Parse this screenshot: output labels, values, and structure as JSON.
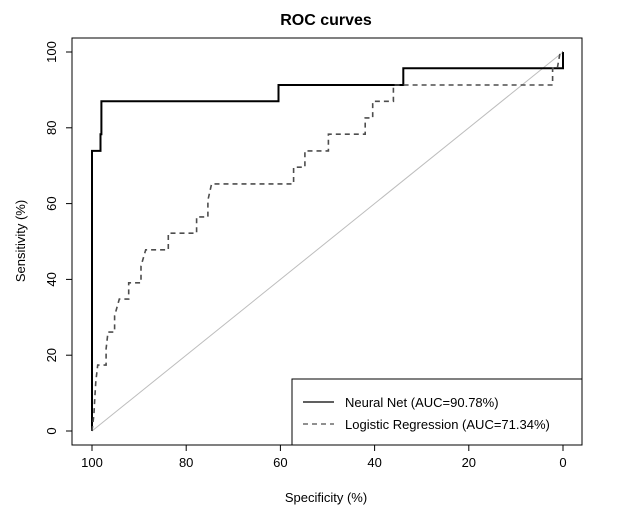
{
  "chart_data": {
    "type": "line",
    "title": "ROC curves",
    "xlabel": "Specificity (%)",
    "ylabel": "Sensitivity (%)",
    "xlim": [
      100,
      0
    ],
    "ylim": [
      0,
      100
    ],
    "x_ticks": [
      100,
      80,
      60,
      40,
      20,
      0
    ],
    "y_ticks": [
      0,
      20,
      40,
      60,
      80,
      100
    ],
    "grid": false,
    "legend_position": "bottom-right",
    "reference_line": {
      "x": [
        100,
        0
      ],
      "y": [
        0,
        100
      ],
      "color": "#bdbdbd"
    },
    "series": [
      {
        "name": "Neural Net (AUC=90.78%)",
        "line_style": "solid",
        "color": "#000000",
        "points": [
          [
            100,
            0
          ],
          [
            100,
            73.9
          ],
          [
            98.2,
            73.9
          ],
          [
            98.2,
            78.3
          ],
          [
            98,
            78.3
          ],
          [
            98,
            87
          ],
          [
            60.4,
            87
          ],
          [
            60.4,
            91.3
          ],
          [
            33.9,
            91.3
          ],
          [
            33.9,
            95.7
          ],
          [
            0,
            95.7
          ],
          [
            0,
            100
          ]
        ]
      },
      {
        "name": "Logistic Regression (AUC=71.34%)",
        "line_style": "dashed",
        "color": "#4d4d4d",
        "points": [
          [
            100,
            0
          ],
          [
            99.6,
            4.3
          ],
          [
            99.4,
            8.7
          ],
          [
            99.2,
            13
          ],
          [
            98.8,
            17.4
          ],
          [
            97,
            17.4
          ],
          [
            97,
            21.7
          ],
          [
            96.6,
            26.1
          ],
          [
            95.2,
            26.1
          ],
          [
            95.2,
            30.4
          ],
          [
            94.2,
            34.8
          ],
          [
            92.2,
            34.8
          ],
          [
            92.2,
            39.1
          ],
          [
            89.6,
            39.1
          ],
          [
            89.6,
            43.5
          ],
          [
            88.6,
            47.8
          ],
          [
            83.8,
            47.8
          ],
          [
            83.8,
            52.2
          ],
          [
            77.8,
            52.2
          ],
          [
            77.8,
            56.5
          ],
          [
            75.4,
            56.5
          ],
          [
            75.4,
            60.9
          ],
          [
            74.6,
            65.2
          ],
          [
            57.2,
            65.2
          ],
          [
            57.2,
            69.6
          ],
          [
            54.8,
            69.6
          ],
          [
            54.8,
            73.9
          ],
          [
            49.8,
            73.9
          ],
          [
            49.8,
            78.3
          ],
          [
            42,
            78.3
          ],
          [
            42,
            82.6
          ],
          [
            40.4,
            82.6
          ],
          [
            40.4,
            87
          ],
          [
            36,
            87
          ],
          [
            36,
            91.3
          ],
          [
            2.2,
            91.3
          ],
          [
            2.2,
            95.7
          ],
          [
            1.2,
            95.7
          ],
          [
            0.6,
            100
          ],
          [
            0,
            100
          ]
        ]
      }
    ]
  }
}
